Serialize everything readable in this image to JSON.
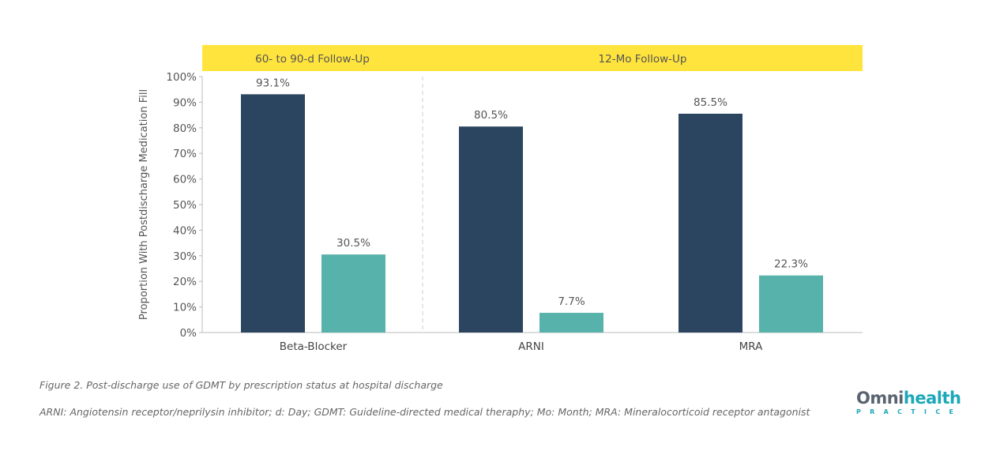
{
  "chart_data": {
    "type": "bar",
    "ylabel": "Proportion With Postdischarge Medication Fill",
    "ylim": [
      0,
      100
    ],
    "yticks": [
      "0%",
      "10%",
      "20%",
      "30%",
      "40%",
      "50%",
      "60%",
      "70%",
      "80%",
      "90%",
      "100%"
    ],
    "categories": [
      "Beta-Blocker",
      "ARNI",
      "MRA"
    ],
    "group_headers": [
      {
        "label": "60- to 90-d Follow-Up",
        "categories": [
          "Beta-Blocker"
        ]
      },
      {
        "label": "12-Mo Follow-Up",
        "categories": [
          "ARNI",
          "MRA"
        ]
      }
    ],
    "series": [
      {
        "values": [
          93.1,
          80.5,
          85.5
        ],
        "labels": [
          "93.1%",
          "80.5%",
          "85.5%"
        ],
        "color": "#2b4560"
      },
      {
        "values": [
          30.5,
          7.7,
          22.3
        ],
        "labels": [
          "30.5%",
          "7.7%",
          "22.3%"
        ],
        "color": "#57b2ab"
      }
    ],
    "grid": false,
    "header_color": "#ffe43d"
  },
  "caption": {
    "title": "Figure 2. Post-discharge use of GDMT by prescription status at hospital discharge",
    "abbreviations": "ARNI: Angiotensin receptor/neprilysin inhibitor; d: Day; GDMT: Guideline-directed medical theraphy; Mo: Month; MRA: Mineralocorticoid receptor antagonist"
  },
  "logo": {
    "part1": "Omni",
    "part2": "health",
    "sub": "PRACTICE"
  }
}
